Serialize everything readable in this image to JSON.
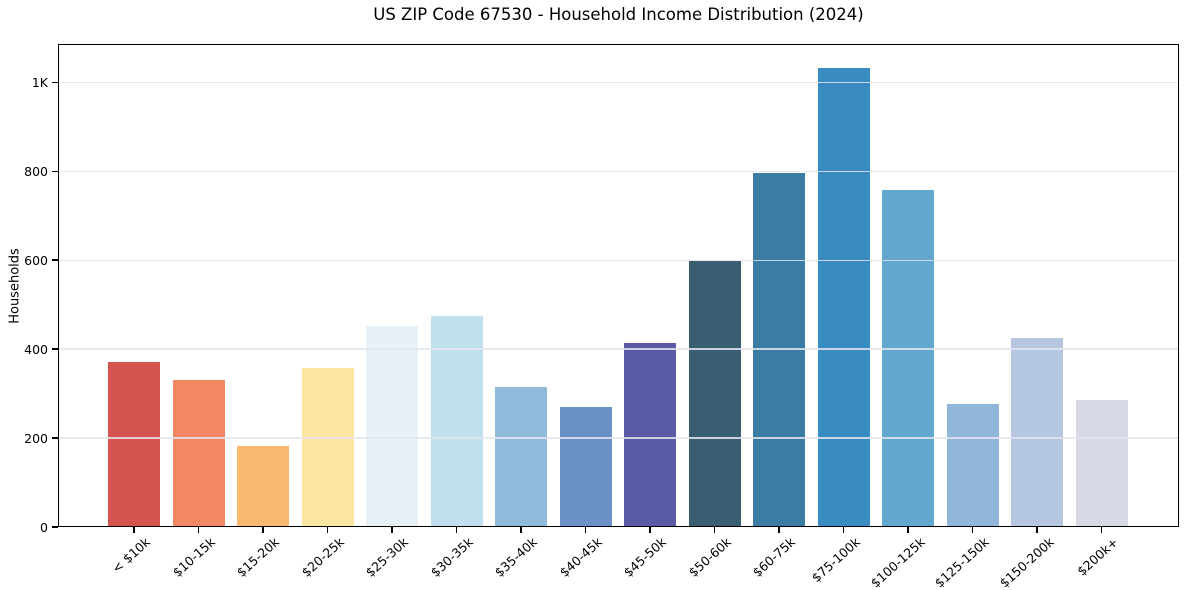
{
  "chart_data": {
    "type": "bar",
    "title": "US ZIP Code 67530 - Household Income Distribution (2024)",
    "xlabel": "",
    "ylabel": "Households",
    "ylim": [
      0,
      1086
    ],
    "grid": "horizontal",
    "legend": "none",
    "categories": [
      "< $10k",
      "$10-15k",
      "$15-20k",
      "$20-25k",
      "$25-30k",
      "$30-35k",
      "$35-40k",
      "$40-45k",
      "$45-50k",
      "$50-60k",
      "$60-75k",
      "$75-100k",
      "$100-125k",
      "$125-150k",
      "$150-200k",
      "$200k+"
    ],
    "values": [
      371,
      330,
      183,
      357,
      452,
      474,
      314,
      270,
      413,
      598,
      796,
      1032,
      757,
      276,
      425,
      285
    ],
    "bar_colors": [
      "#d6544f",
      "#f28764",
      "#f9ba70",
      "#fce4a1",
      "#e8f2f6",
      "#c1e0ee",
      "#90bad9",
      "#6b90c8",
      "#5b5aa7",
      "#395e72",
      "#3a7ca3",
      "#388cc2",
      "#62a8ce",
      "#90b7da",
      "#b5c7e0",
      "#d7dae6"
    ],
    "yticks": [
      {
        "value": 0,
        "label": "0"
      },
      {
        "value": 200,
        "label": "200"
      },
      {
        "value": 400,
        "label": "400"
      },
      {
        "value": 600,
        "label": "600"
      },
      {
        "value": 800,
        "label": "800"
      },
      {
        "value": 1000,
        "label": "1K"
      }
    ]
  },
  "colors": {
    "background": "#ffffff",
    "frame": "#000000",
    "grid": "#e7e7ef",
    "text": "#000000"
  }
}
